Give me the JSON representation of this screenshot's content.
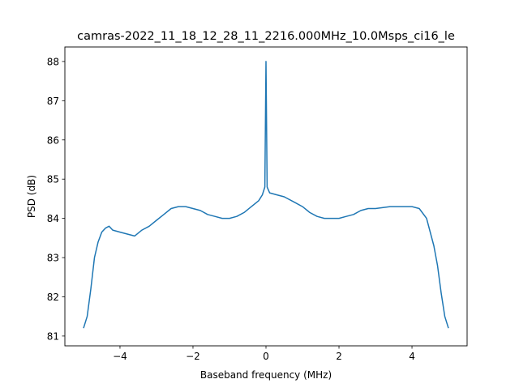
{
  "chart_data": {
    "type": "line",
    "title": "camras-2022_11_18_12_28_11_2216.000MHz_10.0Msps_ci16_le",
    "xlabel": "Baseband frequency (MHz)",
    "ylabel": "PSD (dB)",
    "xlim": [
      -5.51,
      5.51
    ],
    "ylim": [
      80.75,
      88.37
    ],
    "xticks": [
      -4,
      -2,
      0,
      2,
      4
    ],
    "xtick_labels": [
      "−4",
      "−2",
      "0",
      "2",
      "4"
    ],
    "yticks": [
      81,
      82,
      83,
      84,
      85,
      86,
      87,
      88
    ],
    "ytick_labels": [
      "81",
      "82",
      "83",
      "84",
      "85",
      "86",
      "87",
      "88"
    ],
    "grid": false,
    "color": "#1f77b4",
    "series": [
      {
        "name": "PSD",
        "x": [
          -5.0,
          -4.9,
          -4.8,
          -4.7,
          -4.6,
          -4.5,
          -4.4,
          -4.3,
          -4.2,
          -4.0,
          -3.8,
          -3.6,
          -3.4,
          -3.2,
          -3.0,
          -2.8,
          -2.6,
          -2.4,
          -2.2,
          -2.0,
          -1.8,
          -1.6,
          -1.4,
          -1.2,
          -1.0,
          -0.8,
          -0.6,
          -0.4,
          -0.2,
          -0.1,
          -0.03,
          0.0,
          0.03,
          0.1,
          0.3,
          0.5,
          0.8,
          1.0,
          1.2,
          1.4,
          1.6,
          1.8,
          2.0,
          2.2,
          2.4,
          2.6,
          2.8,
          3.0,
          3.4,
          3.8,
          4.0,
          4.2,
          4.4,
          4.6,
          4.7,
          4.8,
          4.9,
          5.0
        ],
        "y": [
          81.2,
          81.5,
          82.2,
          83.0,
          83.4,
          83.65,
          83.75,
          83.8,
          83.7,
          83.65,
          83.6,
          83.55,
          83.7,
          83.8,
          83.95,
          84.1,
          84.25,
          84.3,
          84.3,
          84.25,
          84.2,
          84.1,
          84.05,
          84.0,
          84.0,
          84.05,
          84.15,
          84.3,
          84.45,
          84.6,
          84.8,
          88.0,
          84.8,
          84.65,
          84.6,
          84.55,
          84.4,
          84.3,
          84.15,
          84.05,
          84.0,
          84.0,
          84.0,
          84.05,
          84.1,
          84.2,
          84.25,
          84.25,
          84.3,
          84.3,
          84.3,
          84.25,
          84.0,
          83.3,
          82.8,
          82.1,
          81.5,
          81.2
        ]
      }
    ]
  }
}
